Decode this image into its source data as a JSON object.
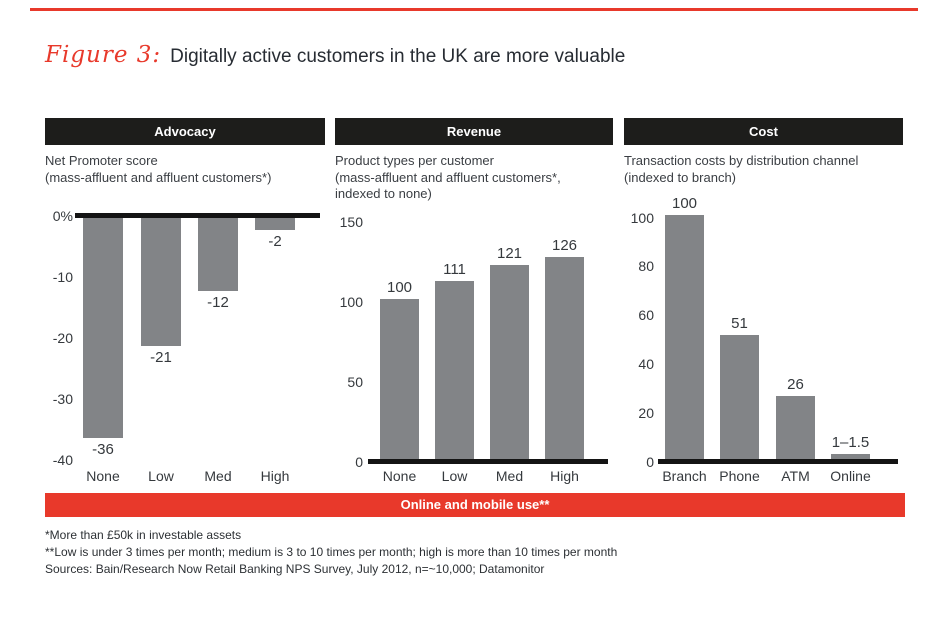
{
  "figure": {
    "label": "Figure 3:",
    "title": "Digitally active customers in the UK are more valuable"
  },
  "colors": {
    "accent_red": "#e8392b",
    "bar_gray": "#828487",
    "header_black": "#1d1d1b",
    "baseline_black": "#141414"
  },
  "banner": {
    "label": "Online and mobile use**"
  },
  "footnotes": [
    "*More than £50k in investable assets",
    "**Low is under 3 times per month; medium is 3 to 10 times per month; high is more than 10 times per month",
    "Sources: Bain/Research Now Retail Banking NPS Survey, July 2012, n=~10,000; Datamonitor"
  ],
  "chart_data": [
    {
      "type": "bar",
      "panel": "Advocacy",
      "subtitle": "Net Promoter score\n(mass-affluent and affluent customers*)",
      "categories": [
        "None",
        "Low",
        "Med",
        "High"
      ],
      "values": [
        -36,
        -21,
        -12,
        -2
      ],
      "labels": [
        "-36",
        "-21",
        "-12",
        "-2"
      ],
      "yticks": [
        "0%",
        "-10",
        "-20",
        "-30",
        "-40"
      ],
      "ylim": [
        -40,
        0
      ],
      "xlabel": "",
      "ylabel": "Net Promoter score (%)",
      "grid": false,
      "legend": "none"
    },
    {
      "type": "bar",
      "panel": "Revenue",
      "subtitle": "Product types per customer\n(mass-affluent and affluent customers*,\nindexed to none)",
      "categories": [
        "None",
        "Low",
        "Med",
        "High"
      ],
      "values": [
        100,
        111,
        121,
        126
      ],
      "labels": [
        "100",
        "111",
        "121",
        "126"
      ],
      "yticks": [
        "150",
        "100",
        "50",
        "0"
      ],
      "ylim": [
        0,
        150
      ],
      "xlabel": "",
      "ylabel": "Product types per customer (indexed)",
      "grid": false,
      "legend": "none"
    },
    {
      "type": "bar",
      "panel": "Cost",
      "subtitle": "Transaction costs by distribution channel\n(indexed to branch)",
      "categories": [
        "Branch",
        "Phone",
        "ATM",
        "Online"
      ],
      "values": [
        100,
        51,
        26,
        1.5
      ],
      "labels": [
        "100",
        "51",
        "26",
        "1–1.5"
      ],
      "yticks": [
        "100",
        "80",
        "60",
        "40",
        "20",
        "0"
      ],
      "ylim": [
        0,
        100
      ],
      "xlabel": "",
      "ylabel": "Transaction costs (indexed)",
      "grid": false,
      "legend": "none"
    }
  ]
}
